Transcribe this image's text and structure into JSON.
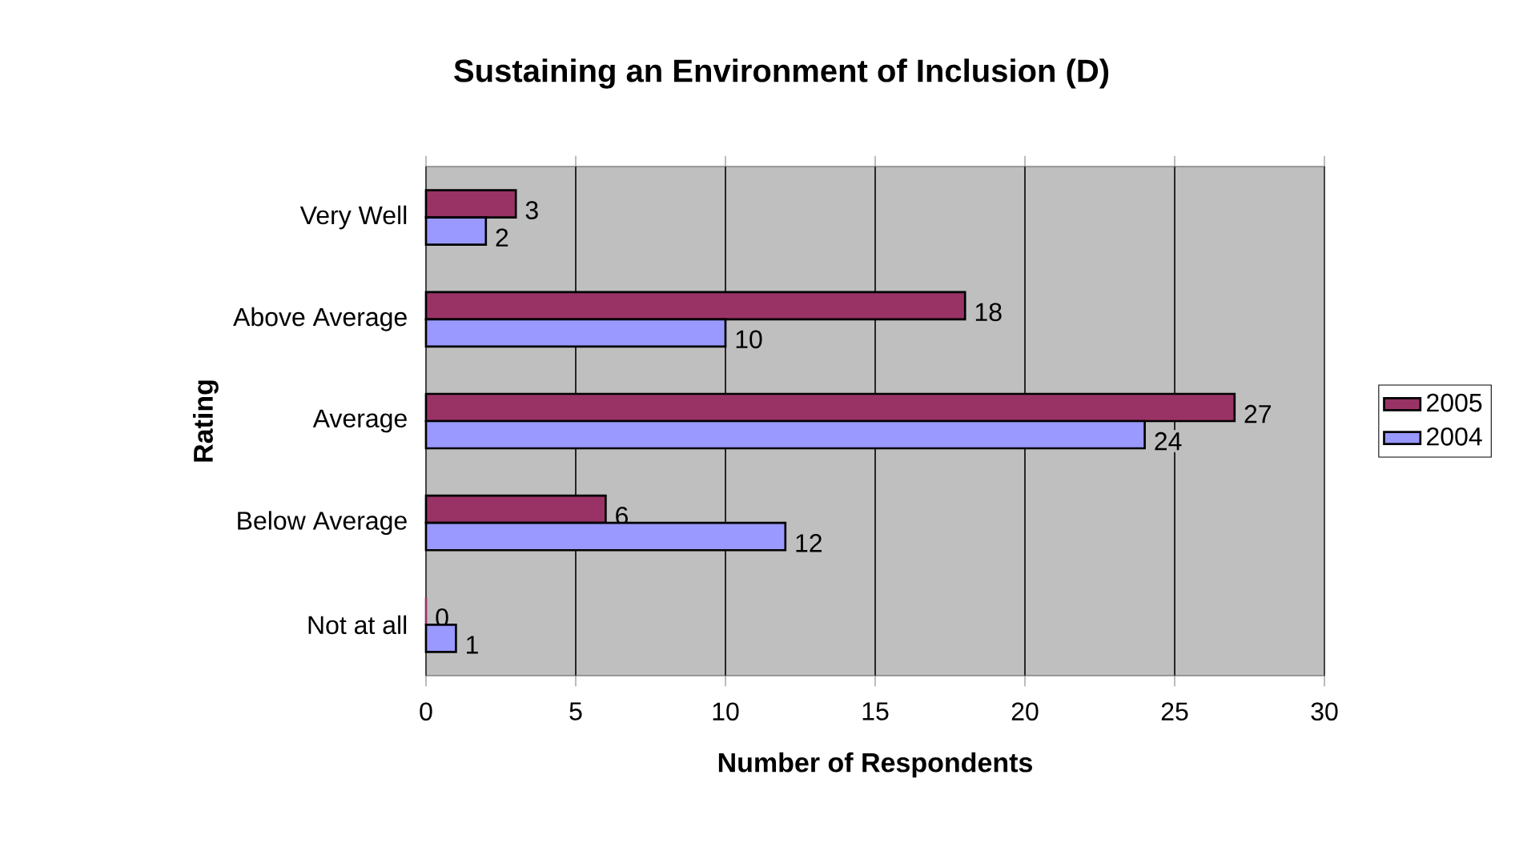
{
  "chart_data": {
    "type": "bar",
    "orientation": "horizontal",
    "title": "Sustaining an Environment of Inclusion (D)",
    "xlabel": "Number of Respondents",
    "ylabel": "Rating",
    "categories": [
      "Very Well",
      "Above Average",
      "Average",
      "Below Average",
      "Not at all"
    ],
    "series": [
      {
        "name": "2005",
        "color": "#993366",
        "values": [
          3,
          18,
          27,
          6,
          0
        ]
      },
      {
        "name": "2004",
        "color": "#9999ff",
        "values": [
          2,
          10,
          24,
          12,
          1
        ]
      }
    ],
    "xlim": [
      0,
      30
    ],
    "xticks": [
      0,
      5,
      10,
      15,
      20,
      25,
      30
    ],
    "grid": "x",
    "legend": "right",
    "data_labels": true
  }
}
